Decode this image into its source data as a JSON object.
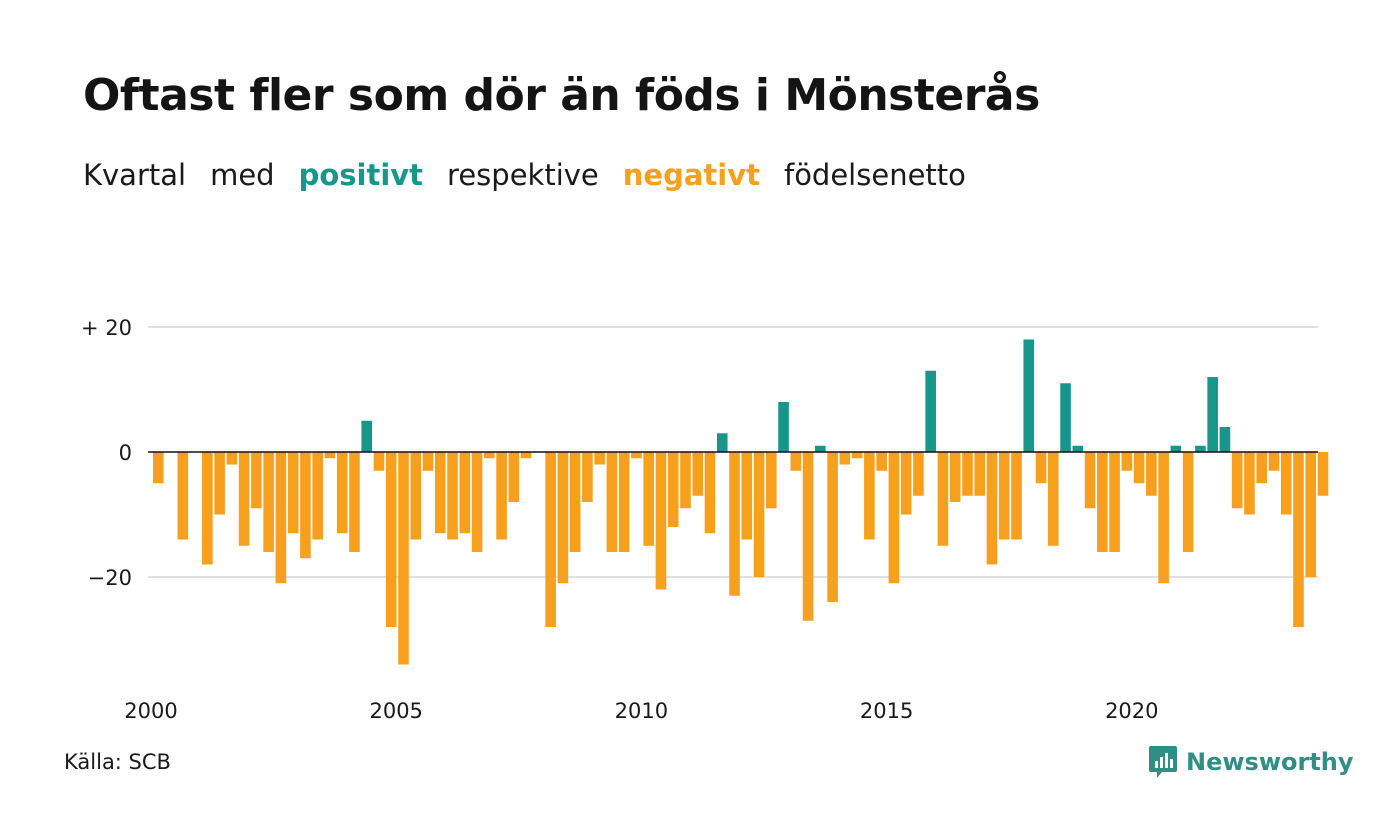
{
  "title": "Oftast fler som dör än föds i Mönsterås",
  "subtitle": {
    "part1": "Kvartal",
    "part2": "med",
    "positive": "positivt",
    "part3": "respektive",
    "negative": "negativt",
    "part4": "födelsenetto"
  },
  "colors": {
    "positive": "#16978a",
    "negative": "#f7a01d",
    "grid": "#e0e0e0",
    "brand": "#2f8f84"
  },
  "source": "Källa: SCB",
  "brand": {
    "name": "Newsworthy",
    "icon": "newsworthy-chart-icon"
  },
  "chart_data": {
    "type": "bar",
    "ylim": [
      -36,
      22
    ],
    "yticks": [
      {
        "value": 20,
        "label": "+ 20"
      },
      {
        "value": 0,
        "label": "0"
      },
      {
        "value": -20,
        "label": "−20"
      }
    ],
    "xticks": [
      {
        "index": 0,
        "label": "2000"
      },
      {
        "index": 20,
        "label": "2005"
      },
      {
        "index": 40,
        "label": "2010"
      },
      {
        "index": 60,
        "label": "2015"
      },
      {
        "index": 80,
        "label": "2020"
      }
    ],
    "grid": true,
    "values": [
      -5,
      0,
      -14,
      0,
      -18,
      -10,
      -2,
      -15,
      -9,
      -16,
      -21,
      -13,
      -17,
      -14,
      -1,
      -13,
      -16,
      5,
      -3,
      -28,
      -34,
      -14,
      -3,
      -13,
      -14,
      -13,
      -16,
      -1,
      -14,
      -8,
      -1,
      0,
      -28,
      -21,
      -16,
      -8,
      -2,
      -16,
      -16,
      -1,
      -15,
      -22,
      -12,
      -9,
      -7,
      -13,
      3,
      -23,
      -14,
      -20,
      -9,
      8,
      -3,
      -27,
      1,
      -24,
      -2,
      -1,
      -14,
      -3,
      -21,
      -10,
      -7,
      13,
      -15,
      -8,
      -7,
      -7,
      -18,
      -14,
      -14,
      18,
      -5,
      -15,
      11,
      1,
      -9,
      -16,
      -16,
      -3,
      -5,
      -7,
      -21,
      1,
      -16,
      1,
      12,
      4,
      -9,
      -10,
      -5,
      -3,
      -10,
      -28,
      -20,
      -7
    ]
  }
}
